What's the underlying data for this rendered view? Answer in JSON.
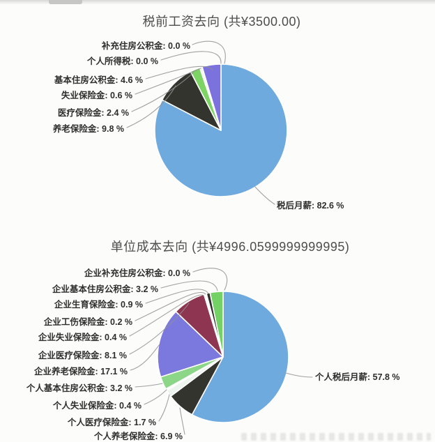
{
  "chart_data": [
    {
      "type": "pie",
      "title": "税前工资去向 (共¥3500.00)",
      "start_angle": 90,
      "direction": "counterclockwise",
      "legend_position": "none",
      "slices": [
        {
          "label": "补充住房公积金",
          "value": 0.0,
          "display": "补充住房公积金: 0.0 %",
          "color": "#ffffff"
        },
        {
          "label": "个人所得税",
          "value": 0.0,
          "display": "个人所得税: 0.0 %",
          "color": "#ffffff"
        },
        {
          "label": "基本住房公积金",
          "value": 4.6,
          "display": "基本住房公积金: 4.6 %",
          "color": "#7b72dd"
        },
        {
          "label": "失业保险金",
          "value": 0.6,
          "display": "失业保险金: 0.6 %",
          "color": "#f3f5f2"
        },
        {
          "label": "医疗保险金",
          "value": 2.4,
          "display": "医疗保险金: 2.4 %",
          "color": "#7dd465"
        },
        {
          "label": "养老保险金",
          "value": 9.8,
          "display": "养老保险金: 9.8 %",
          "color": "#34342f"
        },
        {
          "label": "税后月薪",
          "value": 82.6,
          "display": "税后月薪: 82.6 %",
          "color": "#6faade"
        }
      ]
    },
    {
      "type": "pie",
      "title": "单位成本去向 (共¥4996.0599999999995)",
      "start_angle": 90,
      "direction": "counterclockwise",
      "legend_position": "none",
      "slices": [
        {
          "label": "企业补充住房公积金",
          "value": 0.0,
          "display": "企业补充住房公积金: 0.0 %",
          "color": "#ffffff"
        },
        {
          "label": "企业基本住房公积金",
          "value": 3.2,
          "display": "企业基本住房公积金: 3.2 %",
          "color": "#74d165"
        },
        {
          "label": "企业生育保险金",
          "value": 0.9,
          "display": "企业生育保险金: 0.9 %",
          "color": "#2f2f2b"
        },
        {
          "label": "企业工伤保险金",
          "value": 0.2,
          "display": "企业工伤保险金: 0.2 %",
          "color": "#ffffff"
        },
        {
          "label": "企业失业保险金",
          "value": 0.4,
          "display": "企业失业保险金: 0.4 %",
          "color": "#fbfdfb"
        },
        {
          "label": "企业医疗保险金",
          "value": 8.1,
          "display": "企业医疗保险金: 8.1 %",
          "color": "#8e3552"
        },
        {
          "label": "企业养老保险金",
          "value": 17.1,
          "display": "企业养老保险金: 17.1 %",
          "color": "#7b78de"
        },
        {
          "label": "个人基本住房公积金",
          "value": 3.2,
          "display": "个人基本住房公积金: 3.2 %",
          "color": "#8cd687"
        },
        {
          "label": "个人失业保险金",
          "value": 0.4,
          "display": "个人失业保险金: 0.4 %",
          "color": "#ffffff"
        },
        {
          "label": "个人医疗保险金",
          "value": 1.7,
          "display": "个人医疗保险金: 1.7 %",
          "color": "#eef4ee"
        },
        {
          "label": "个人养老保险金",
          "value": 6.9,
          "display": "个人养老保险金: 6.9 %",
          "color": "#34342f"
        },
        {
          "label": "个人税后月薪",
          "value": 57.8,
          "display": "个人税后月薪: 57.8 %",
          "color": "#6faade"
        }
      ]
    }
  ]
}
